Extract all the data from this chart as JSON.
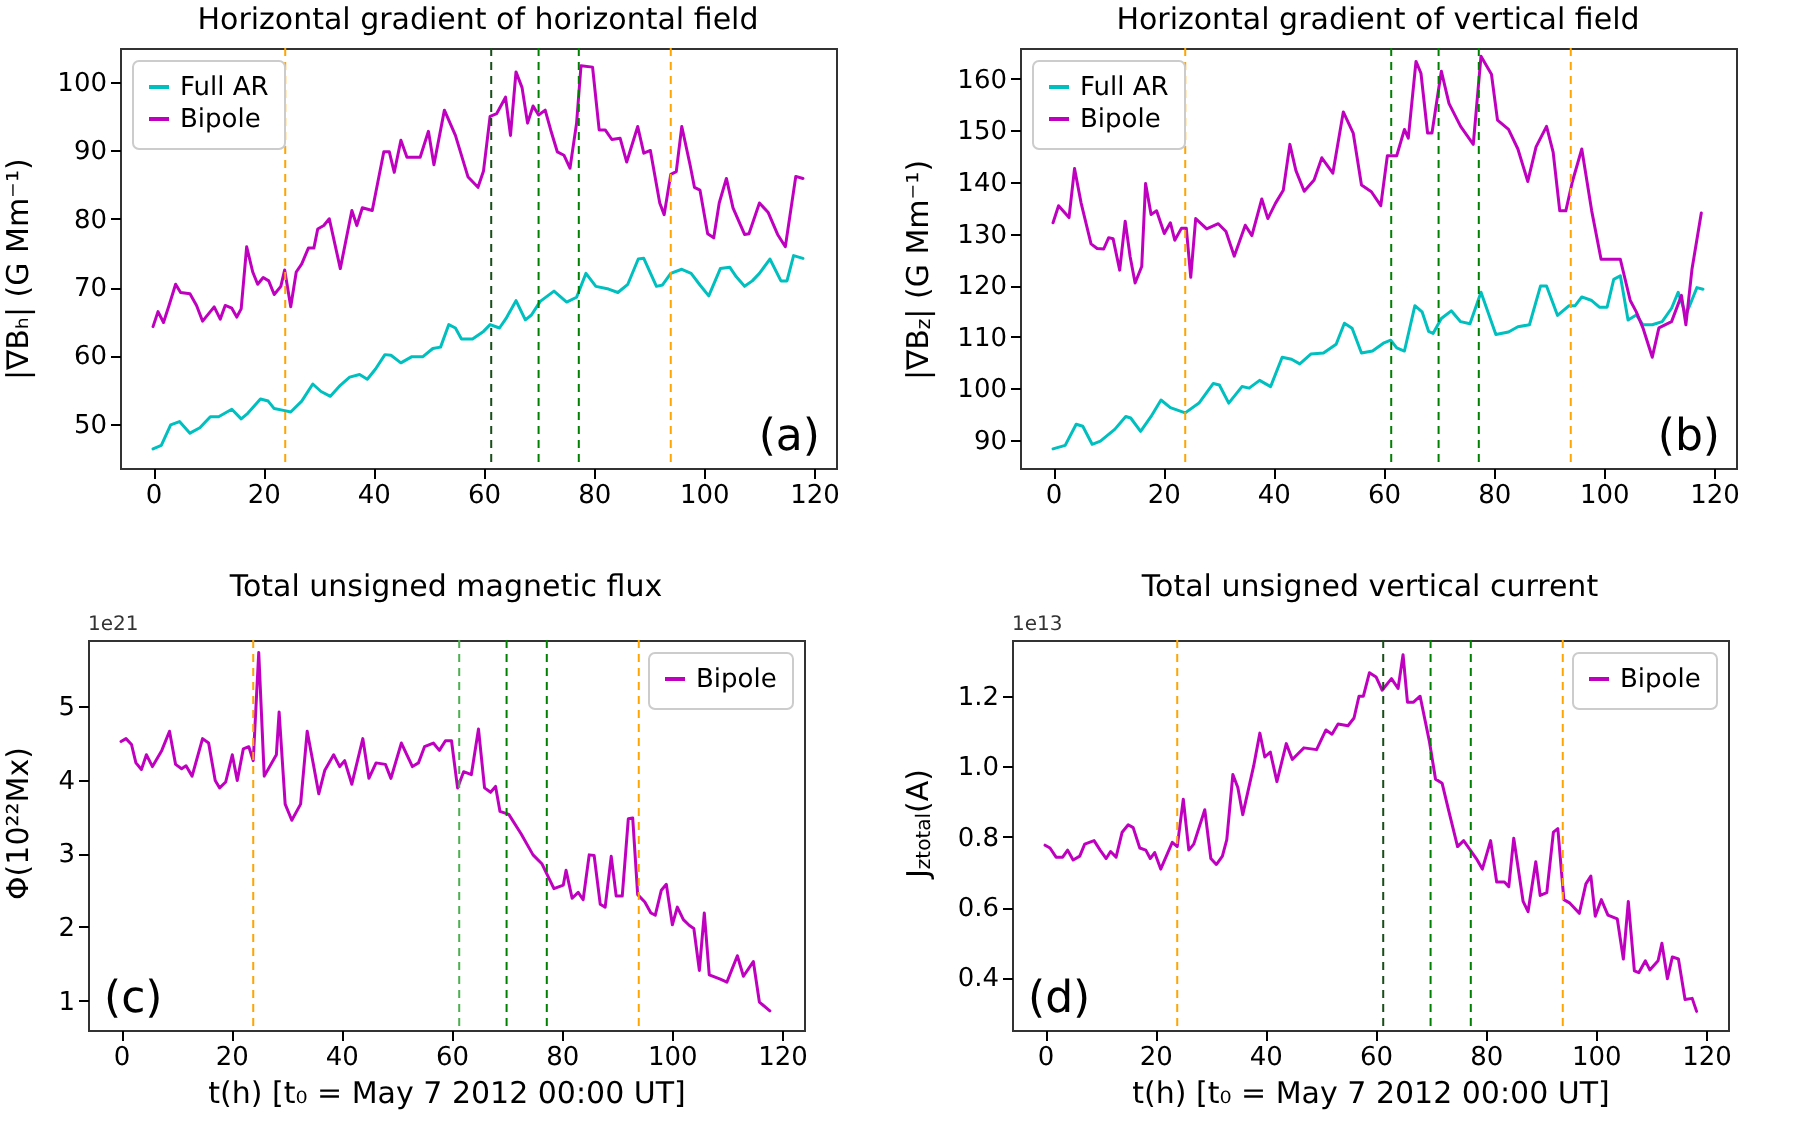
{
  "chart_data": [
    {
      "type": "line",
      "title": "Horizontal gradient of horizontal field",
      "ylabel": "|∇Bₕ| (G Mm⁻¹)",
      "annotations": [
        "(a)"
      ],
      "legend": "top left",
      "xlim": [
        -6,
        124
      ],
      "xticks": [
        0,
        20,
        40,
        60,
        80,
        100,
        120
      ],
      "ylim": [
        43.5,
        105
      ],
      "yticks": [
        50,
        60,
        70,
        80,
        90,
        100
      ],
      "ref_lines": [
        {
          "axis": "x",
          "value": 24,
          "color": "#ffa500",
          "line_style": "dashed"
        },
        {
          "axis": "x",
          "value": 61.4,
          "color": "#1a4d1a",
          "line_style": "dashed"
        },
        {
          "axis": "x",
          "value": 70,
          "color": "#008000",
          "line_style": "dashed"
        },
        {
          "axis": "x",
          "value": 77.3,
          "color": "#008000",
          "line_style": "dashed"
        },
        {
          "axis": "x",
          "value": 94,
          "color": "#ffa500",
          "line_style": "dashed"
        }
      ],
      "series": [
        {
          "name": "Full AR",
          "color": "#00bfbf",
          "x": [
            0,
            1.5,
            3.2,
            4.8,
            6.7,
            8.5,
            10.4,
            11.9,
            14.3,
            16,
            17.2,
            19.5,
            20.9,
            22,
            23.9,
            25,
            27,
            29,
            30.5,
            32.2,
            34,
            35.7,
            37.5,
            38.9,
            40.4,
            42.1,
            43.2,
            45,
            47,
            49,
            50.8,
            52.2,
            53.7,
            54.9,
            56,
            58,
            60,
            61.2,
            62.9,
            64.1,
            65.9,
            67.6,
            68.7,
            70.3,
            72.8,
            75.1,
            76.9,
            78.6,
            80.4,
            82.7,
            84.4,
            86.2,
            88.1,
            89.1,
            91.4,
            92.5,
            94,
            96,
            97.7,
            99.3,
            100.9,
            103,
            104.7,
            105.9,
            107.4,
            108.8,
            110.1,
            112,
            114,
            115.1,
            116.3,
            118
          ],
          "values": [
            46.3,
            46.8,
            49.8,
            50.3,
            48.6,
            49.4,
            51,
            51,
            52.1,
            50.7,
            51.5,
            53.6,
            53.3,
            52.2,
            51.9,
            51.7,
            53.3,
            55.8,
            54.7,
            54,
            55.6,
            56.8,
            57.2,
            56.5,
            58,
            60.1,
            60,
            58.9,
            59.8,
            59.8,
            61,
            61.2,
            64.5,
            64,
            62.4,
            62.4,
            63.5,
            64.5,
            64,
            65.4,
            68,
            65.2,
            65.9,
            67.9,
            69.4,
            67.8,
            68.5,
            72,
            70.1,
            69.7,
            69.2,
            70.4,
            74.1,
            74.2,
            70.1,
            70.3,
            72,
            72.6,
            72,
            70.3,
            68.7,
            72.7,
            72.9,
            71.5,
            70.1,
            70.9,
            72,
            74.1,
            70.9,
            70.9,
            74.6,
            74.2
          ]
        },
        {
          "name": "Bipole",
          "color": "#bf00bf",
          "x": [
            0,
            0.9,
            1.9,
            2.9,
            4.1,
            5,
            6.7,
            7.9,
            9,
            11.1,
            12.2,
            13.1,
            14.3,
            15.2,
            16,
            17,
            18.1,
            19,
            20,
            21,
            22,
            23.2,
            23.9,
            25,
            26,
            27,
            28.2,
            29.2,
            29.9,
            31,
            32,
            34,
            36.1,
            37,
            38,
            39.8,
            41.9,
            42.9,
            43.8,
            45,
            46.1,
            48.5,
            50,
            51,
            52.9,
            54.9,
            57.2,
            59,
            60,
            61.2,
            62.4,
            64,
            64.9,
            65.9,
            67,
            68,
            69,
            70,
            71.2,
            72.2,
            73.4,
            74.6,
            75.7,
            76.9,
            77.7,
            79.8,
            81,
            82.1,
            83.3,
            84.8,
            86,
            88,
            89.1,
            90.3,
            92,
            92.8,
            94,
            95,
            96,
            97.5,
            98.3,
            99.3,
            100.7,
            101.8,
            102.8,
            104.1,
            105.3,
            107.4,
            108.2,
            110.1,
            111.7,
            113.4,
            114.8,
            116.7,
            118
          ],
          "values": [
            64.2,
            66.4,
            64.8,
            67.3,
            70.4,
            69.2,
            69,
            67.3,
            65,
            67.1,
            65.3,
            67.3,
            66.9,
            65.6,
            66.8,
            75.9,
            72.2,
            70.4,
            71.4,
            70.9,
            68.9,
            70.1,
            72.5,
            67.1,
            72.2,
            73.4,
            75.7,
            75.7,
            78.5,
            79,
            80,
            72.7,
            81.2,
            79,
            81.6,
            81.2,
            89.8,
            89.8,
            86.8,
            91.5,
            89,
            89,
            92.8,
            87.9,
            95.9,
            92.2,
            86.1,
            84.6,
            87,
            95,
            95.4,
            97.8,
            92.2,
            101.5,
            99.2,
            94,
            96.5,
            95.2,
            95.9,
            93,
            89.8,
            89.3,
            87.4,
            94,
            102.4,
            102.2,
            93,
            93,
            91.6,
            91.8,
            88.3,
            93.5,
            89.6,
            90,
            82.3,
            80.6,
            86.5,
            86.9,
            93.5,
            87.9,
            84.6,
            84.2,
            77.8,
            77.2,
            82.3,
            85.9,
            81.6,
            77.7,
            77.8,
            82.3,
            80.9,
            77.7,
            75.9,
            86.2,
            85.9
          ]
        }
      ]
    },
    {
      "type": "line",
      "title": "Horizontal gradient of vertical field",
      "ylabel": "|∇B$_{z}$| (G Mm⁻¹)",
      "annotations": [
        "(b)"
      ],
      "legend": "top left",
      "xlim": [
        -6,
        124
      ],
      "xticks": [
        0,
        20,
        40,
        60,
        80,
        100,
        120
      ],
      "ylim": [
        84.5,
        166
      ],
      "yticks": [
        90,
        100,
        110,
        120,
        130,
        140,
        150,
        160
      ],
      "ref_lines": [
        {
          "axis": "x",
          "value": 24,
          "color": "#ffa500",
          "line_style": "dashed"
        },
        {
          "axis": "x",
          "value": 61.4,
          "color": "#008000",
          "line_style": "dashed"
        },
        {
          "axis": "x",
          "value": 70,
          "color": "#008000",
          "line_style": "dashed"
        },
        {
          "axis": "x",
          "value": 77.3,
          "color": "#008000",
          "line_style": "dashed"
        },
        {
          "axis": "x",
          "value": 94,
          "color": "#ffa500",
          "line_style": "dashed"
        }
      ],
      "series": [
        {
          "name": "Full AR",
          "color": "#00bfbf",
          "x": [
            0,
            2.2,
            4.2,
            5.4,
            7.1,
            8.6,
            11.2,
            13.2,
            14.1,
            15.9,
            17.8,
            19.6,
            21.3,
            24,
            26.5,
            29.1,
            30.2,
            31.9,
            34.3,
            35.6,
            37.5,
            39.5,
            41.6,
            43.3,
            44.8,
            46.8,
            49.1,
            51.4,
            52.9,
            54.3,
            56,
            58,
            60.1,
            61.3,
            62.4,
            63.8,
            65.7,
            67,
            68.2,
            69,
            70.5,
            72.3,
            74,
            75.7,
            77.7,
            80.4,
            82.7,
            84.4,
            86.5,
            88.5,
            89.6,
            91.6,
            93.7,
            94.8,
            96,
            97.8,
            99.2,
            100.6,
            101.8,
            103,
            104.4,
            105.9,
            107.1,
            108.8,
            110.6,
            112.3,
            113.5,
            114.9,
            116.9,
            118
          ],
          "values": [
            88.2,
            88.9,
            93,
            92.6,
            89.1,
            89.7,
            92,
            94.5,
            94.2,
            91.6,
            94.5,
            97.7,
            96.2,
            95.2,
            97.1,
            100.9,
            100.6,
            97.1,
            100.3,
            100,
            101.5,
            100.3,
            106,
            105.6,
            104.7,
            106.6,
            106.8,
            108.5,
            112.6,
            111.6,
            106.8,
            107.2,
            108.8,
            109.3,
            107.8,
            107.2,
            116,
            114.8,
            111,
            110.6,
            113.5,
            115,
            112.9,
            112.5,
            118.6,
            110.4,
            110.9,
            111.9,
            112.3,
            119.8,
            119.8,
            114.1,
            116,
            116,
            117.7,
            117,
            115.7,
            115.7,
            121.1,
            121.8,
            113.2,
            114.2,
            112.3,
            112.3,
            112.9,
            115.5,
            118.6,
            114.2,
            119.5,
            119.2
          ]
        },
        {
          "name": "Bipole",
          "color": "#bf00bf",
          "x": [
            0,
            1,
            2.9,
            3.9,
            5.1,
            6.9,
            8,
            9.2,
            10.1,
            10.9,
            12.1,
            13.1,
            14,
            14.9,
            16.1,
            16.8,
            17.8,
            18.8,
            20.2,
            21.3,
            22.1,
            23.3,
            24.2,
            25,
            25.9,
            27.9,
            30,
            31.4,
            32.9,
            34.9,
            36.1,
            37.9,
            39,
            40.4,
            41.8,
            43,
            44.1,
            45.6,
            47.4,
            48.8,
            50.8,
            52.7,
            54.5,
            56,
            57.8,
            59.5,
            60.7,
            62.4,
            63.8,
            64.5,
            65.9,
            66.8,
            68,
            68.8,
            70.5,
            71.9,
            74,
            76.3,
            77.7,
            79.6,
            80.7,
            82.7,
            84.4,
            86.2,
            87.7,
            89.6,
            90.8,
            92,
            93.1,
            94.3,
            96,
            97.8,
            99.5,
            103,
            104.8,
            105.9,
            107.1,
            108.8,
            110,
            112.3,
            114.1,
            114.9,
            116,
            117.7
          ],
          "values": [
            132.1,
            135.4,
            133.1,
            142.6,
            135.9,
            128,
            127.1,
            127,
            129.2,
            129,
            122.9,
            132.4,
            125.5,
            120.4,
            123.6,
            139.7,
            133.7,
            134.4,
            130,
            132.1,
            128.7,
            131,
            131,
            121.5,
            132.9,
            130.9,
            131.9,
            130.4,
            125.6,
            131.6,
            129.6,
            136.7,
            132.9,
            135.9,
            138.4,
            147.3,
            142.2,
            138.2,
            140.4,
            144.7,
            141.7,
            153.6,
            149.5,
            139.4,
            138.1,
            135.4,
            145.1,
            145.1,
            150.2,
            148.5,
            163.4,
            161.1,
            149.5,
            149.5,
            161.5,
            155.2,
            150.8,
            147.3,
            164.4,
            160.9,
            152,
            150.2,
            146.4,
            140.1,
            146.8,
            150.8,
            145.8,
            134.4,
            134.4,
            140.1,
            146.4,
            134.4,
            125,
            125,
            117,
            114.8,
            111.7,
            106,
            111.7,
            112.9,
            118,
            112.3,
            123,
            134
          ]
        }
      ]
    },
    {
      "type": "line",
      "title": "Total unsigned magnetic flux",
      "xlabel": "t(h) [t₀ = May 7 2012 00:00 UT]",
      "ylabel": "Φ(10²²Mx)",
      "annotations": [
        "(c)",
        "1e21"
      ],
      "legend": "top right",
      "xlim": [
        -6,
        124
      ],
      "xticks": [
        0,
        20,
        40,
        60,
        80,
        100,
        120
      ],
      "ylim": [
        0.6,
        5.9
      ],
      "yticks": [
        1,
        2,
        3,
        4,
        5
      ],
      "ref_lines": [
        {
          "axis": "x",
          "value": 24,
          "color": "#ffa500",
          "line_style": "dashed"
        },
        {
          "axis": "x",
          "value": 61.4,
          "color": "#4caf50",
          "line_style": "dashed"
        },
        {
          "axis": "x",
          "value": 70,
          "color": "#008000",
          "line_style": "dashed"
        },
        {
          "axis": "x",
          "value": 77.3,
          "color": "#008000",
          "line_style": "dashed"
        },
        {
          "axis": "x",
          "value": 94,
          "color": "#ffa500",
          "line_style": "dashed"
        }
      ],
      "series": [
        {
          "name": "Bipole",
          "color": "#bf00bf",
          "x": [
            0,
            0.9,
            1.9,
            2.7,
            3.7,
            4.6,
            5.7,
            7.4,
            8.8,
            9.9,
            11,
            11.8,
            12.9,
            14.8,
            15.9,
            17.1,
            17.9,
            19,
            20.2,
            21.1,
            22.2,
            23.2,
            24,
            25,
            26,
            28.2,
            28.7,
            29.8,
            31,
            32.6,
            33.8,
            34.8,
            35.9,
            37,
            38.6,
            39.7,
            40.6,
            41.9,
            43.9,
            45,
            46.3,
            48,
            49,
            50.9,
            52.9,
            54,
            55.1,
            56.7,
            57.8,
            58.9,
            60,
            61.1,
            62.2,
            63.6,
            64.9,
            66,
            67.1,
            68,
            68.8,
            70.4,
            72.6,
            74.8,
            76.4,
            78.6,
            80.3,
            80.8,
            81.9,
            83,
            83.9,
            85,
            85.9,
            87,
            87.9,
            89,
            89.9,
            91,
            92.1,
            92.9,
            93.8,
            95.1,
            96.2,
            97,
            98.1,
            99,
            100.1,
            101,
            102.1,
            103.2,
            104,
            105,
            105.9,
            106.8,
            108.8,
            110,
            111.9,
            113,
            114.8,
            115.9,
            117.8
          ],
          "values": [
            4.52,
            4.56,
            4.48,
            4.23,
            4.14,
            4.34,
            4.18,
            4.4,
            4.66,
            4.21,
            4.15,
            4.19,
            4.05,
            4.56,
            4.5,
            3.99,
            3.89,
            3.97,
            4.34,
            3.99,
            4.42,
            4.45,
            4.26,
            5.73,
            4.05,
            4.34,
            4.92,
            3.67,
            3.45,
            3.67,
            4.66,
            4.26,
            3.81,
            4.13,
            4.34,
            4.18,
            4.26,
            3.94,
            4.56,
            4.02,
            4.23,
            4.21,
            4.02,
            4.5,
            4.18,
            4.23,
            4.45,
            4.5,
            4.4,
            4.53,
            4.53,
            3.89,
            4.11,
            4.07,
            4.69,
            3.89,
            3.83,
            3.91,
            3.57,
            3.53,
            3.27,
            2.98,
            2.86,
            2.52,
            2.57,
            2.77,
            2.39,
            2.47,
            2.37,
            2.98,
            2.97,
            2.31,
            2.27,
            2.96,
            2.42,
            2.42,
            3.47,
            3.48,
            2.44,
            2.34,
            2.19,
            2.16,
            2.5,
            2.58,
            2.03,
            2.27,
            2.1,
            2.02,
            1.98,
            1.41,
            2.19,
            1.35,
            1.29,
            1.25,
            1.61,
            1.33,
            1.53,
            0.98,
            0.86
          ]
        }
      ]
    },
    {
      "type": "line",
      "title": "Total unsigned vertical current",
      "xlabel": "t(h) [t₀ = May 7 2012 00:00 UT]",
      "ylabel": "J$_{z}$$_{total}$(A)",
      "annotations": [
        "(d)",
        "1e13"
      ],
      "legend": "top right",
      "xlim": [
        -6,
        124
      ],
      "xticks": [
        0,
        20,
        40,
        60,
        80,
        100,
        120
      ],
      "ylim": [
        0.25,
        1.36
      ],
      "yticks": [
        {
          "value": 0.4,
          "label": "0.4"
        },
        {
          "value": 0.6,
          "label": "0.6"
        },
        {
          "value": 0.8,
          "label": "0.8"
        },
        {
          "value": 1.0,
          "label": "1.0"
        },
        {
          "value": 1.2,
          "label": "1.2"
        }
      ],
      "ref_lines": [
        {
          "axis": "x",
          "value": 24,
          "color": "#ffa500",
          "line_style": "dashed"
        },
        {
          "axis": "x",
          "value": 61.4,
          "color": "#1a4d1a",
          "line_style": "dashed"
        },
        {
          "axis": "x",
          "value": 70,
          "color": "#008000",
          "line_style": "dashed"
        },
        {
          "axis": "x",
          "value": 77.3,
          "color": "#008000",
          "line_style": "dashed"
        },
        {
          "axis": "x",
          "value": 94,
          "color": "#ffa500",
          "line_style": "dashed"
        }
      ],
      "series": [
        {
          "name": "Bipole",
          "color": "#bf00bf",
          "x": [
            0,
            0.9,
            2,
            3.2,
            4.1,
            5.1,
            6.3,
            7.2,
            8.9,
            10,
            11.1,
            11.9,
            12.9,
            14,
            15.1,
            16,
            17.2,
            18.3,
            19.1,
            19.9,
            21,
            23.1,
            24,
            25.1,
            26.1,
            27,
            29,
            30.1,
            31.1,
            32.2,
            33,
            34.1,
            35,
            35.9,
            37.9,
            39,
            39.9,
            40.9,
            42.1,
            43.8,
            44.9,
            47,
            49.3,
            51,
            52.1,
            53.2,
            55,
            56.1,
            57,
            57.8,
            58.9,
            60.1,
            61.2,
            62.9,
            64.1,
            65,
            65.8,
            66.9,
            68.1,
            69.8,
            70.9,
            72.1,
            73.2,
            74.9,
            76,
            78.3,
            79.4,
            80.9,
            82,
            83.4,
            84.2,
            85.1,
            86.8,
            87.7,
            89.1,
            89.9,
            91.1,
            92.3,
            93.1,
            94.2,
            95.3,
            97,
            98.2,
            99.1,
            99.9,
            101,
            102.2,
            103.9,
            105,
            105.9,
            107,
            107.8,
            109,
            109.8,
            111.3,
            112,
            113,
            113.9,
            115,
            116.2,
            117.5,
            118.3
          ],
          "values": [
            0.776,
            0.768,
            0.742,
            0.742,
            0.762,
            0.734,
            0.745,
            0.779,
            0.789,
            0.762,
            0.738,
            0.758,
            0.742,
            0.813,
            0.834,
            0.826,
            0.768,
            0.762,
            0.738,
            0.755,
            0.708,
            0.784,
            0.772,
            0.907,
            0.762,
            0.779,
            0.877,
            0.738,
            0.721,
            0.745,
            0.792,
            0.977,
            0.94,
            0.863,
            1.003,
            1.095,
            1.027,
            1.041,
            0.957,
            1.065,
            1.02,
            1.053,
            1.048,
            1.104,
            1.092,
            1.121,
            1.116,
            1.138,
            1.2,
            1.2,
            1.267,
            1.255,
            1.217,
            1.25,
            1.222,
            1.318,
            1.183,
            1.183,
            1.2,
            1.07,
            0.964,
            0.952,
            0.88,
            0.772,
            0.789,
            0.738,
            0.708,
            0.789,
            0.671,
            0.671,
            0.658,
            0.796,
            0.616,
            0.587,
            0.729,
            0.633,
            0.641,
            0.813,
            0.823,
            0.621,
            0.611,
            0.582,
            0.666,
            0.688,
            0.574,
            0.621,
            0.577,
            0.566,
            0.452,
            0.616,
            0.418,
            0.413,
            0.447,
            0.421,
            0.447,
            0.497,
            0.396,
            0.458,
            0.452,
            0.337,
            0.34,
            0.303
          ]
        }
      ]
    }
  ]
}
